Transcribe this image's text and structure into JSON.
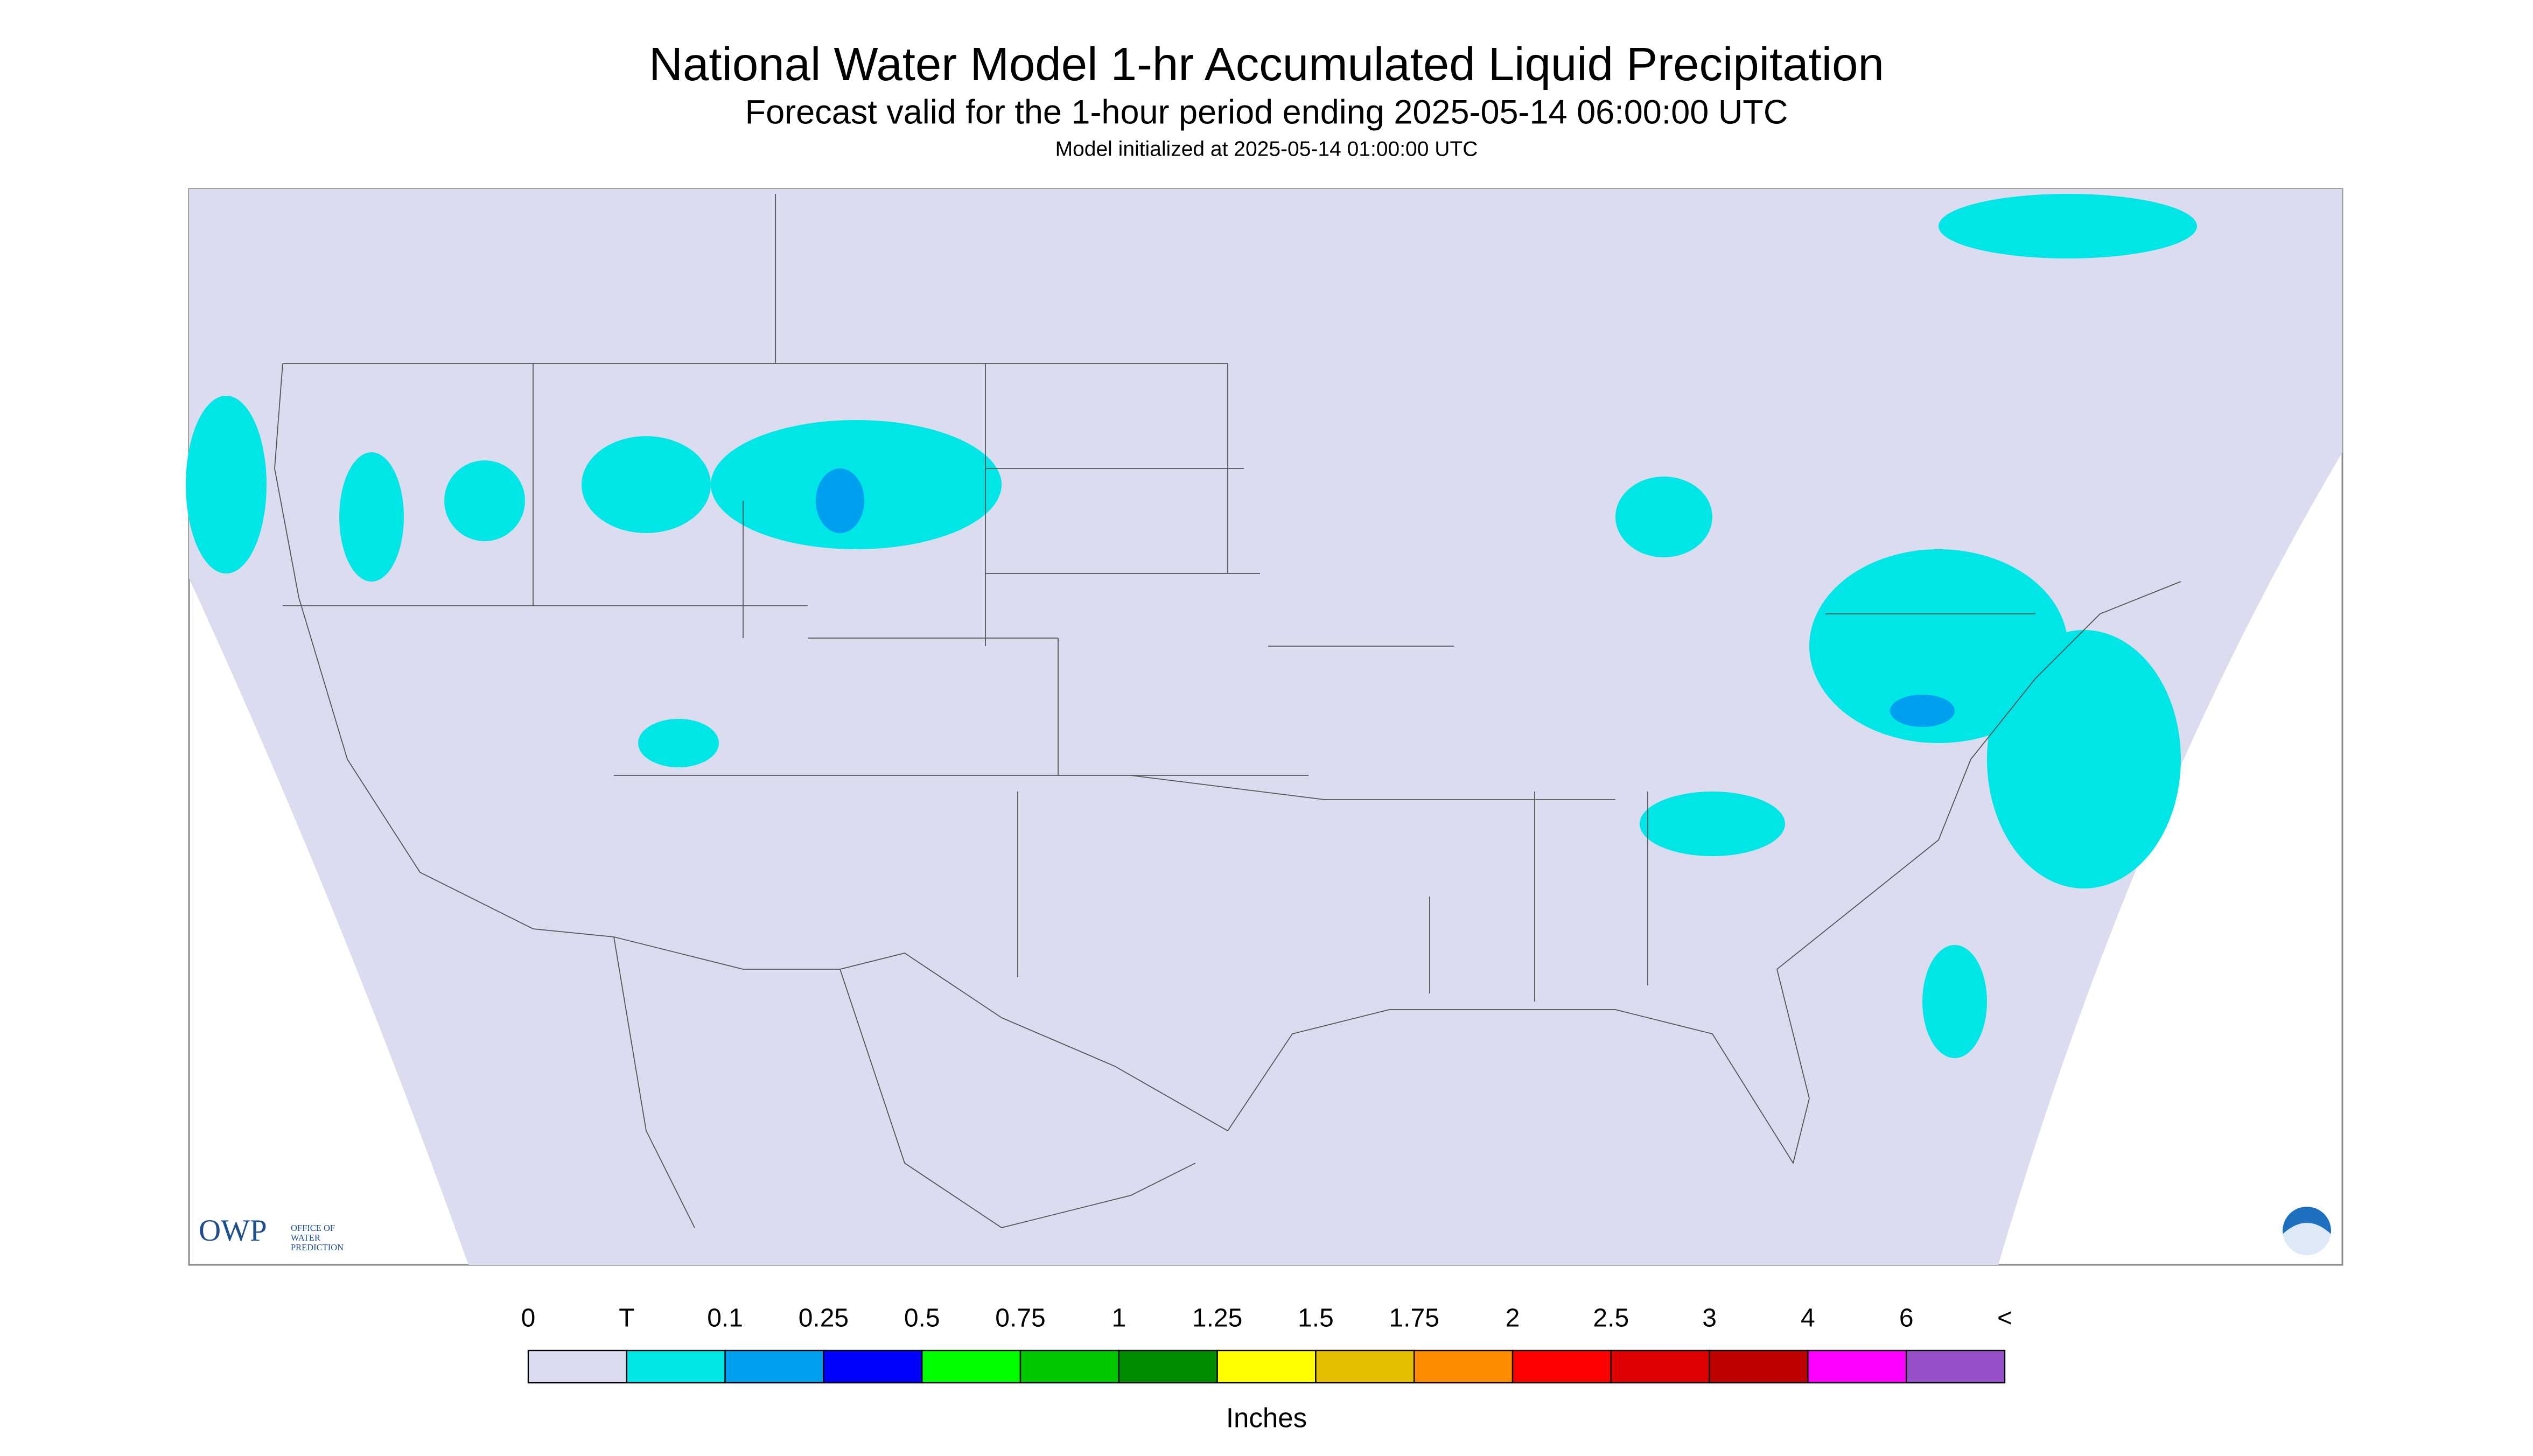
{
  "header": {
    "title": "National Water Model 1-hr Accumulated Liquid Precipitation",
    "subtitle": "Forecast valid for the 1-hour period ending 2025-05-14 06:00:00 UTC",
    "note": "Model initialized at 2025-05-14 01:00:00 UTC"
  },
  "logo": {
    "letters": "OWP",
    "line1": "OFFICE OF",
    "line2": "WATER",
    "line3": "PREDICTION"
  },
  "legend": {
    "labels": [
      "0",
      "T",
      "0.1",
      "0.25",
      "0.5",
      "0.75",
      "1",
      "1.25",
      "1.5",
      "1.75",
      "2",
      "2.5",
      "3",
      "4",
      "6",
      "<"
    ],
    "colors": [
      "#dcdcf0",
      "#00e6e6",
      "#00a0f0",
      "#0000ff",
      "#00ff00",
      "#00c800",
      "#008c00",
      "#ffff00",
      "#e6be00",
      "#ff8c00",
      "#ff0000",
      "#dc0000",
      "#be0000",
      "#ff00ff",
      "#9650c8"
    ],
    "unit": "Inches"
  }
}
